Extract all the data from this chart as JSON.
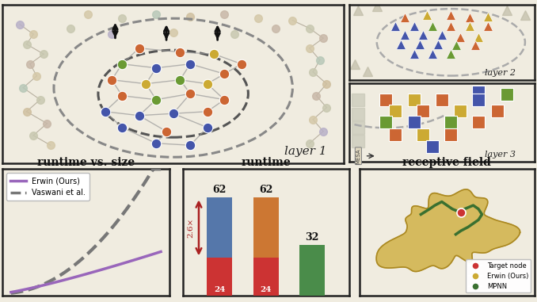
{
  "bg_color": "#f0ece0",
  "panel_bg": "#f0ece0",
  "c_blue": "#4455aa",
  "c_orange": "#cc6633",
  "c_green": "#6a9a33",
  "c_yellow": "#ccaa33",
  "c_purple": "#9966cc",
  "c_gray_node": "#aaaaaa",
  "erwin_color": "#9966bb",
  "vaswani_color": "#777777",
  "bar_colors": [
    "#5577aa",
    "#cc7733",
    "#4a8c4a"
  ],
  "bar_bottom_color": "#cc3333",
  "annotation_26x": "2.6×",
  "legend_receptive": [
    "Target node",
    "Erwin (Ours)",
    "MPNN"
  ],
  "legend_colors_receptive": [
    "#cc3333",
    "#ccaa33",
    "#4a8c4a"
  ]
}
